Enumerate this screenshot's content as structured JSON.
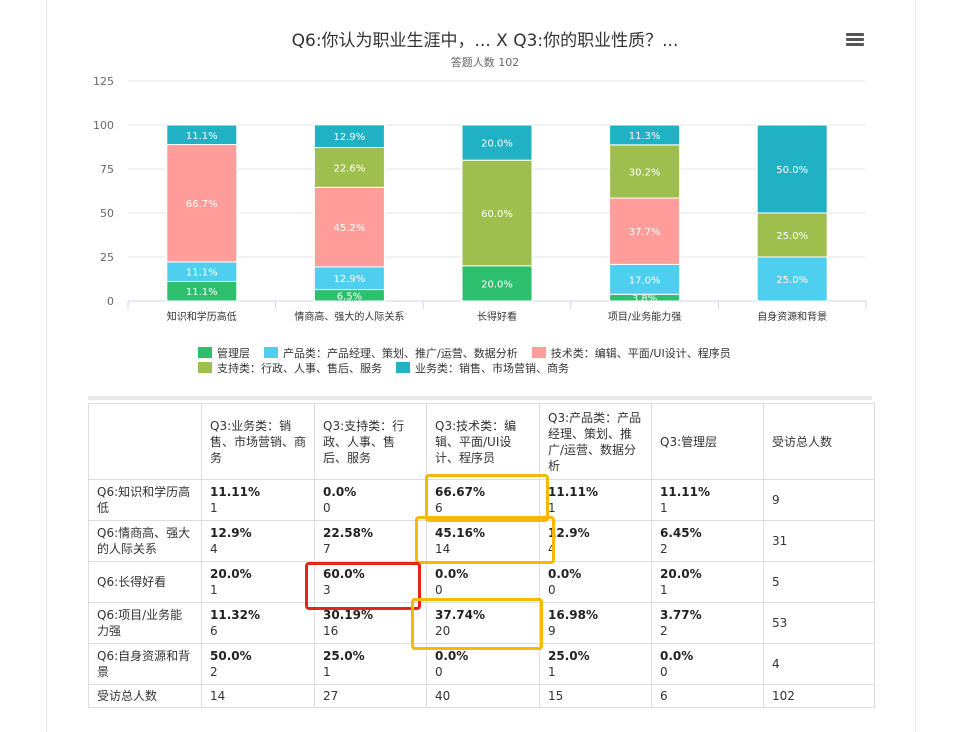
{
  "chart_data": {
    "type": "bar",
    "stacked": true,
    "title": "Q6:你认为职业生涯中，... X Q3:你的职业性质？...",
    "subtitle": "答题人数 102",
    "categories": [
      "知识和学历高低",
      "情商高、强大的人际关系",
      "长得好看",
      "项目/业务能力强",
      "自身资源和背景"
    ],
    "yticks": [
      0,
      25,
      50,
      75,
      100,
      125
    ],
    "ylim": [
      0,
      125
    ],
    "series": [
      {
        "name": "管理层",
        "color": "#2ebf6e",
        "values": [
          11.1,
          6.5,
          20.0,
          3.8,
          0
        ],
        "labels": [
          "11.1%",
          "6.5%",
          "20.0%",
          "3.8%",
          ""
        ]
      },
      {
        "name": "产品类：产品经理、策划、推广/运营、数据分析",
        "color": "#4ecff0",
        "values": [
          11.1,
          12.9,
          0,
          17.0,
          25.0
        ],
        "labels": [
          "11.1%",
          "12.9%",
          "",
          "17.0%",
          "25.0%"
        ]
      },
      {
        "name": "技术类：编辑、平面/UI设计、程序员",
        "color": "#ff9d9a",
        "values": [
          66.7,
          45.2,
          0,
          37.7,
          0
        ],
        "labels": [
          "66.7%",
          "45.2%",
          "",
          "37.7%",
          ""
        ]
      },
      {
        "name": "支持类：行政、人事、售后、服务",
        "color": "#9ebf4e",
        "values": [
          0,
          22.6,
          60.0,
          30.2,
          25.0
        ],
        "labels": [
          "",
          "22.6%",
          "60.0%",
          "30.2%",
          "25.0%"
        ]
      },
      {
        "name": "业务类：销售、市场营销、商务",
        "color": "#20b2c4",
        "values": [
          11.1,
          12.9,
          20.0,
          11.3,
          50.0
        ],
        "labels": [
          "11.1%",
          "12.9%",
          "20.0%",
          "11.3%",
          "50.0%"
        ]
      }
    ],
    "legend_rows": [
      [
        0,
        1,
        2
      ],
      [
        3,
        4
      ]
    ]
  },
  "table": {
    "headers": [
      "",
      "Q3:业务类：销售、市场营销、商务",
      "Q3:支持类：行政、人事、售后、服务",
      "Q3:技术类：编辑、平面/UI设计、程序员",
      "Q3:产品类：产品经理、策划、推广/运营、数据分析",
      "Q3:管理层",
      "受访总人数"
    ],
    "rows": [
      {
        "label": "Q6:知识和学历高低",
        "cells": [
          [
            "11.11%",
            "1"
          ],
          [
            "0.0%",
            "0"
          ],
          [
            "66.67%",
            "6"
          ],
          [
            "11.11%",
            "1"
          ],
          [
            "11.11%",
            "1"
          ]
        ],
        "total": "9"
      },
      {
        "label": "Q6:情商高、强大的人际关系",
        "cells": [
          [
            "12.9%",
            "4"
          ],
          [
            "22.58%",
            "7"
          ],
          [
            "45.16%",
            "14"
          ],
          [
            "12.9%",
            "4"
          ],
          [
            "6.45%",
            "2"
          ]
        ],
        "total": "31"
      },
      {
        "label": "Q6:长得好看",
        "cells": [
          [
            "20.0%",
            "1"
          ],
          [
            "60.0%",
            "3"
          ],
          [
            "0.0%",
            "0"
          ],
          [
            "0.0%",
            "0"
          ],
          [
            "20.0%",
            "1"
          ]
        ],
        "total": "5"
      },
      {
        "label": "Q6:项目/业务能力强",
        "cells": [
          [
            "11.32%",
            "6"
          ],
          [
            "30.19%",
            "16"
          ],
          [
            "37.74%",
            "20"
          ],
          [
            "16.98%",
            "9"
          ],
          [
            "3.77%",
            "2"
          ]
        ],
        "total": "53"
      },
      {
        "label": "Q6:自身资源和背景",
        "cells": [
          [
            "50.0%",
            "2"
          ],
          [
            "25.0%",
            "1"
          ],
          [
            "0.0%",
            "0"
          ],
          [
            "25.0%",
            "1"
          ],
          [
            "0.0%",
            "0"
          ]
        ],
        "total": "4"
      }
    ],
    "footer": {
      "label": "受访总人数",
      "values": [
        "14",
        "27",
        "40",
        "15",
        "6",
        "102"
      ]
    }
  }
}
